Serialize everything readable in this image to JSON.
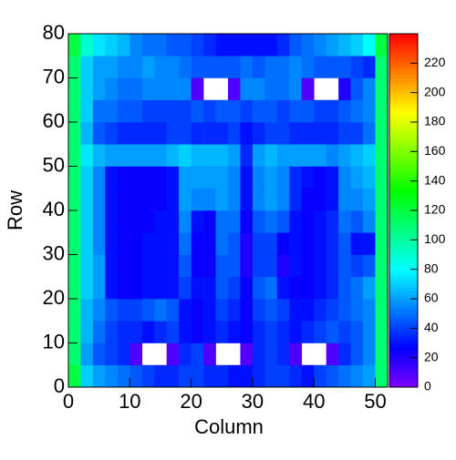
{
  "chart_data": {
    "type": "heatmap",
    "x_label": "Column",
    "y_label": "Row",
    "xbins": [
      0,
      2,
      4,
      6,
      8,
      10,
      12,
      14,
      16,
      18,
      20,
      22,
      24,
      26,
      28,
      30,
      32,
      34,
      36,
      38,
      40,
      42,
      44,
      46,
      48,
      50,
      52
    ],
    "ybins": [
      0,
      5,
      10,
      15,
      20,
      25,
      30,
      35,
      40,
      45,
      50,
      55,
      60,
      65,
      70,
      75,
      80
    ],
    "xlim": [
      0,
      52
    ],
    "ylim": [
      0,
      80
    ],
    "zlim": [
      0,
      240
    ],
    "xticks": [
      0,
      10,
      20,
      30,
      40,
      50
    ],
    "yticks": [
      0,
      10,
      20,
      30,
      40,
      50,
      60,
      70,
      80
    ],
    "zticks": [
      0,
      20,
      40,
      60,
      80,
      100,
      120,
      140,
      160,
      180,
      200,
      220
    ],
    "colormap": "rainbow",
    "z": [
      [
        120,
        70,
        60,
        55,
        50,
        45,
        40,
        35,
        35,
        40,
        40,
        35,
        35,
        30,
        30,
        35,
        40,
        40,
        35,
        30,
        40,
        45,
        50,
        55,
        60,
        110
      ],
      [
        110,
        60,
        45,
        40,
        35,
        10,
        null,
        null,
        10,
        35,
        40,
        10,
        null,
        null,
        10,
        35,
        40,
        35,
        10,
        null,
        null,
        10,
        35,
        45,
        55,
        110
      ],
      [
        110,
        65,
        50,
        40,
        35,
        35,
        30,
        35,
        40,
        30,
        25,
        30,
        35,
        30,
        25,
        35,
        40,
        35,
        30,
        35,
        40,
        45,
        40,
        45,
        55,
        110
      ],
      [
        110,
        65,
        55,
        45,
        40,
        40,
        45,
        50,
        45,
        30,
        25,
        30,
        40,
        35,
        25,
        40,
        45,
        40,
        30,
        30,
        35,
        40,
        45,
        50,
        55,
        110
      ],
      [
        110,
        70,
        60,
        30,
        25,
        25,
        30,
        30,
        30,
        40,
        30,
        30,
        45,
        40,
        25,
        45,
        50,
        30,
        25,
        25,
        30,
        35,
        45,
        50,
        60,
        110
      ],
      [
        110,
        70,
        60,
        30,
        25,
        25,
        30,
        30,
        30,
        45,
        25,
        25,
        45,
        45,
        20,
        40,
        40,
        20,
        30,
        25,
        30,
        35,
        45,
        40,
        45,
        110
      ],
      [
        110,
        70,
        55,
        30,
        25,
        25,
        30,
        30,
        30,
        50,
        25,
        25,
        50,
        45,
        20,
        40,
        40,
        25,
        30,
        25,
        30,
        35,
        45,
        30,
        30,
        110
      ],
      [
        110,
        70,
        55,
        30,
        25,
        25,
        25,
        30,
        30,
        55,
        30,
        25,
        50,
        50,
        25,
        45,
        50,
        45,
        30,
        25,
        30,
        35,
        50,
        45,
        55,
        110
      ],
      [
        110,
        70,
        55,
        30,
        25,
        25,
        25,
        25,
        30,
        60,
        55,
        55,
        60,
        55,
        30,
        55,
        60,
        55,
        35,
        25,
        25,
        30,
        55,
        55,
        60,
        110
      ],
      [
        110,
        70,
        55,
        30,
        25,
        25,
        25,
        25,
        30,
        60,
        60,
        60,
        60,
        55,
        30,
        55,
        60,
        55,
        35,
        30,
        25,
        30,
        55,
        60,
        65,
        110
      ],
      [
        110,
        75,
        65,
        60,
        60,
        60,
        60,
        60,
        65,
        70,
        65,
        65,
        65,
        60,
        35,
        60,
        65,
        60,
        60,
        60,
        60,
        55,
        60,
        65,
        70,
        110
      ],
      [
        110,
        65,
        45,
        40,
        35,
        35,
        35,
        35,
        40,
        40,
        35,
        35,
        35,
        40,
        30,
        35,
        40,
        40,
        35,
        35,
        35,
        35,
        40,
        40,
        50,
        110
      ],
      [
        110,
        70,
        50,
        50,
        45,
        45,
        40,
        40,
        40,
        40,
        45,
        40,
        45,
        45,
        40,
        45,
        45,
        40,
        45,
        45,
        40,
        40,
        45,
        50,
        55,
        110
      ],
      [
        110,
        70,
        60,
        55,
        50,
        50,
        55,
        55,
        55,
        55,
        10,
        null,
        null,
        10,
        55,
        55,
        50,
        50,
        55,
        10,
        null,
        null,
        20,
        45,
        55,
        110
      ],
      [
        110,
        70,
        60,
        60,
        55,
        55,
        60,
        55,
        55,
        50,
        45,
        45,
        45,
        45,
        50,
        45,
        50,
        50,
        55,
        50,
        45,
        45,
        45,
        40,
        35,
        110
      ],
      [
        120,
        90,
        75,
        70,
        65,
        55,
        50,
        50,
        45,
        45,
        40,
        35,
        30,
        30,
        30,
        30,
        30,
        35,
        45,
        50,
        55,
        60,
        65,
        70,
        80,
        120
      ]
    ]
  }
}
